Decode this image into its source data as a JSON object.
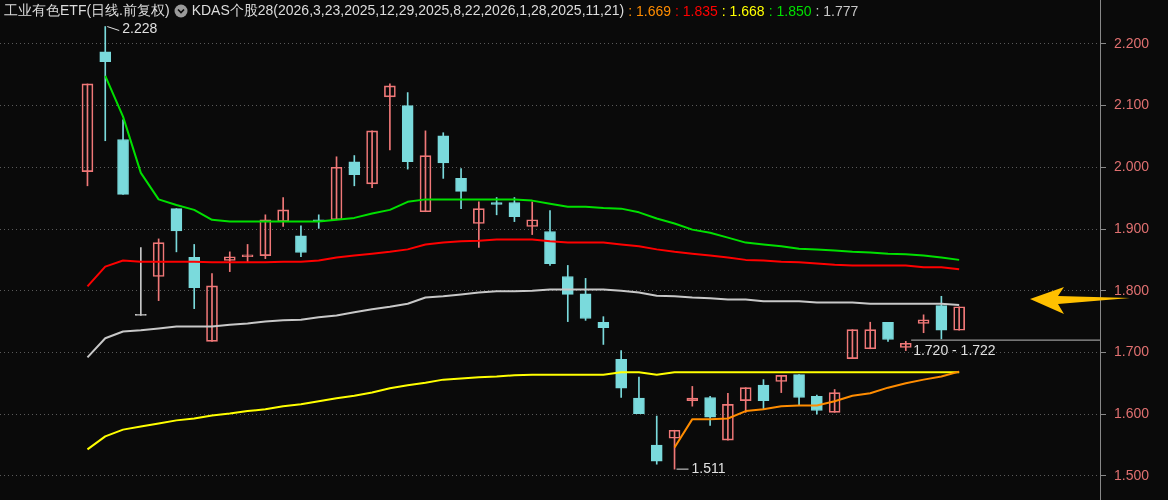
{
  "chart_data": {
    "type": "candlestick",
    "title": "工业有色ETF(日线.前复权)",
    "subtitle": "KDAS个股28(2026,3,23,2025,12,29,2025,8,22,2026,1,28,2025,11,21)",
    "categories": [
      null,
      null,
      null,
      null,
      null,
      null,
      null,
      null,
      null,
      null,
      null,
      null,
      null,
      null,
      null,
      null,
      null,
      null,
      null,
      null,
      null,
      null,
      null,
      null,
      null,
      null,
      null,
      null,
      null,
      null,
      null,
      null,
      null,
      null,
      null,
      null,
      null,
      null,
      null,
      null,
      null,
      null,
      null,
      null,
      null,
      null,
      null,
      null,
      null,
      null
    ],
    "ohlc": [
      [
        1.993,
        2.135,
        1.97,
        2.135
      ],
      [
        2.187,
        2.228,
        2.043,
        2.171
      ],
      [
        2.045,
        2.077,
        1.956,
        1.956
      ],
      [
        1.76,
        1.87,
        1.76,
        1.76
      ],
      [
        1.823,
        1.884,
        1.784,
        1.878
      ],
      [
        1.933,
        1.933,
        1.863,
        1.897
      ],
      [
        1.854,
        1.875,
        1.771,
        1.805
      ],
      [
        1.718,
        1.828,
        1.718,
        1.808
      ],
      [
        1.849,
        1.863,
        1.831,
        1.855
      ],
      [
        1.855,
        1.875,
        1.846,
        1.858
      ],
      [
        1.857,
        1.923,
        1.852,
        1.915
      ],
      [
        1.912,
        1.951,
        1.904,
        1.931
      ],
      [
        1.889,
        1.905,
        1.855,
        1.862
      ],
      [
        1.915,
        1.923,
        1.901,
        1.912
      ],
      [
        1.915,
        2.017,
        1.915,
        2.0
      ],
      [
        2.009,
        2.019,
        1.97,
        1.988
      ],
      [
        1.973,
        2.059,
        1.967,
        2.059
      ],
      [
        2.114,
        2.135,
        2.028,
        2.132
      ],
      [
        2.1,
        2.121,
        1.997,
        2.009
      ],
      [
        1.928,
        2.059,
        1.928,
        2.019
      ],
      [
        2.051,
        2.056,
        1.982,
        2.007
      ],
      [
        1.982,
        1.998,
        1.933,
        1.961
      ],
      [
        1.909,
        1.944,
        1.87,
        1.933
      ],
      [
        1.943,
        1.951,
        1.923,
        1.94
      ],
      [
        1.943,
        1.951,
        1.912,
        1.92
      ],
      [
        1.904,
        1.944,
        1.891,
        1.915
      ],
      [
        1.896,
        1.93,
        1.841,
        1.844
      ],
      [
        1.823,
        1.841,
        1.75,
        1.794
      ],
      [
        1.795,
        1.82,
        1.752,
        1.755
      ],
      [
        1.749,
        1.758,
        1.713,
        1.74
      ],
      [
        1.689,
        1.703,
        1.627,
        1.642
      ],
      [
        1.626,
        1.66,
        1.601,
        1.601
      ],
      [
        1.55,
        1.597,
        1.519,
        1.524
      ],
      [
        1.561,
        1.574,
        1.511,
        1.574
      ],
      [
        1.622,
        1.645,
        1.613,
        1.626
      ],
      [
        1.627,
        1.629,
        1.582,
        1.595
      ],
      [
        1.558,
        1.634,
        1.558,
        1.616
      ],
      [
        1.622,
        1.643,
        1.603,
        1.643
      ],
      [
        1.647,
        1.656,
        1.608,
        1.622
      ],
      [
        1.653,
        1.663,
        1.635,
        1.663
      ],
      [
        1.664,
        1.664,
        1.614,
        1.627
      ],
      [
        1.629,
        1.631,
        1.6,
        1.606
      ],
      [
        1.603,
        1.64,
        1.603,
        1.635
      ],
      [
        1.69,
        1.737,
        1.69,
        1.737
      ],
      [
        1.706,
        1.749,
        1.706,
        1.737
      ],
      [
        1.749,
        1.749,
        1.718,
        1.721
      ],
      [
        1.708,
        1.718,
        1.703,
        1.715
      ],
      [
        1.747,
        1.761,
        1.732,
        1.753
      ],
      [
        1.776,
        1.791,
        1.722,
        1.736
      ],
      [
        1.736,
        1.774,
        1.736,
        1.774
      ]
    ],
    "colors": [
      "#f07878",
      "#7adadc",
      "#7adadc",
      "#c8c8c8",
      "#f07878",
      "#7adadc",
      "#7adadc",
      "#f07878",
      "#f07878",
      "#f07878",
      "#f07878",
      "#f07878",
      "#7adadc",
      "#7adadc",
      "#f07878",
      "#7adadc",
      "#f07878",
      "#f07878",
      "#7adadc",
      "#f07878",
      "#7adadc",
      "#7adadc",
      "#f07878",
      "#7adadc",
      "#7adadc",
      "#f07878",
      "#7adadc",
      "#7adadc",
      "#7adadc",
      "#7adadc",
      "#7adadc",
      "#7adadc",
      "#7adadc",
      "#f07878",
      "#f07878",
      "#7adadc",
      "#f07878",
      "#f07878",
      "#7adadc",
      "#f07878",
      "#7adadc",
      "#7adadc",
      "#f07878",
      "#f07878",
      "#f07878",
      "#7adadc",
      "#f07878",
      "#f07878",
      "#7adadc",
      "#f07878"
    ],
    "series": [
      {
        "name": ": 1.669",
        "type": "line",
        "color": "#ff8c00",
        "values": [
          null,
          null,
          null,
          null,
          null,
          null,
          null,
          null,
          null,
          null,
          null,
          null,
          null,
          null,
          null,
          null,
          null,
          null,
          null,
          null,
          null,
          null,
          null,
          null,
          null,
          null,
          null,
          null,
          null,
          null,
          null,
          null,
          null,
          1.546,
          1.592,
          1.592,
          1.593,
          1.605,
          1.608,
          1.613,
          1.614,
          1.614,
          1.621,
          1.63,
          1.634,
          1.643,
          1.65,
          1.656,
          1.661,
          1.669
        ]
      },
      {
        "name": ": 1.835",
        "type": "line",
        "color": "#ff0000",
        "values": [
          1.807,
          1.839,
          1.849,
          1.847,
          1.847,
          1.847,
          1.847,
          1.846,
          1.846,
          1.846,
          1.846,
          1.847,
          1.847,
          1.849,
          1.854,
          1.857,
          1.86,
          1.863,
          1.867,
          1.875,
          1.878,
          1.88,
          1.881,
          1.883,
          1.883,
          1.883,
          1.88,
          1.878,
          1.878,
          1.878,
          1.875,
          1.872,
          1.867,
          1.863,
          1.86,
          1.857,
          1.854,
          1.85,
          1.849,
          1.847,
          1.846,
          1.844,
          1.842,
          1.841,
          1.841,
          1.841,
          1.841,
          1.838,
          1.838,
          1.835
        ]
      },
      {
        "name": ": 1.668",
        "type": "line",
        "color": "#ffff00",
        "values": [
          1.543,
          1.564,
          1.575,
          1.58,
          1.585,
          1.59,
          1.593,
          1.598,
          1.601,
          1.605,
          1.608,
          1.613,
          1.616,
          1.621,
          1.626,
          1.63,
          1.635,
          1.642,
          1.647,
          1.651,
          1.656,
          1.658,
          1.66,
          1.661,
          1.663,
          1.664,
          1.664,
          1.664,
          1.664,
          1.664,
          1.668,
          1.668,
          1.664,
          1.668,
          1.668,
          1.668,
          1.668,
          1.668,
          1.668,
          1.668,
          1.668,
          1.668,
          1.668,
          1.668,
          1.668,
          1.668,
          1.668,
          1.668,
          1.668,
          1.668
        ]
      },
      {
        "name": ": 1.850",
        "type": "line",
        "color": "#00e000",
        "values": [
          null,
          2.148,
          2.082,
          1.991,
          1.948,
          1.939,
          1.931,
          1.915,
          1.912,
          1.912,
          1.912,
          1.912,
          1.912,
          1.912,
          1.915,
          1.918,
          1.925,
          1.931,
          1.944,
          1.948,
          1.948,
          1.948,
          1.948,
          1.948,
          1.948,
          1.946,
          1.941,
          1.936,
          1.936,
          1.934,
          1.933,
          1.927,
          1.917,
          1.909,
          1.899,
          1.894,
          1.886,
          1.878,
          1.875,
          1.872,
          1.868,
          1.867,
          1.865,
          1.863,
          1.862,
          1.86,
          1.859,
          1.857,
          1.854,
          1.85
        ]
      },
      {
        "name": ": 1.777",
        "type": "line",
        "color": "#c8c8c8",
        "values": [
          1.692,
          1.723,
          1.734,
          1.736,
          1.739,
          1.742,
          1.742,
          1.742,
          1.745,
          1.747,
          1.75,
          1.752,
          1.753,
          1.757,
          1.76,
          1.765,
          1.77,
          1.774,
          1.779,
          1.789,
          1.791,
          1.794,
          1.797,
          1.799,
          1.799,
          1.8,
          1.802,
          1.802,
          1.802,
          1.802,
          1.8,
          1.797,
          1.792,
          1.791,
          1.789,
          1.788,
          1.786,
          1.786,
          1.783,
          1.783,
          1.783,
          1.781,
          1.781,
          1.781,
          1.779,
          1.779,
          1.779,
          1.779,
          1.779,
          1.777
        ]
      }
    ],
    "ylim": [
      1.461,
      2.271
    ],
    "yticks": [
      {
        "value": 1.5,
        "label": "1.500"
      },
      {
        "value": 1.6,
        "label": "1.600"
      },
      {
        "value": 1.7,
        "label": "1.700"
      },
      {
        "value": 1.8,
        "label": "1.800"
      },
      {
        "value": 1.9,
        "label": "1.900"
      },
      {
        "value": 2.0,
        "label": "2.000"
      },
      {
        "value": 2.1,
        "label": "2.100"
      },
      {
        "value": 2.2,
        "label": "2.200"
      }
    ],
    "grid": "y",
    "legend": "top",
    "annotations": [
      "2.228",
      "1.511"
    ],
    "ref_lines": [
      {
        "axis": "y",
        "value": 1.72,
        "label": "1.720 - 1.722"
      }
    ]
  }
}
